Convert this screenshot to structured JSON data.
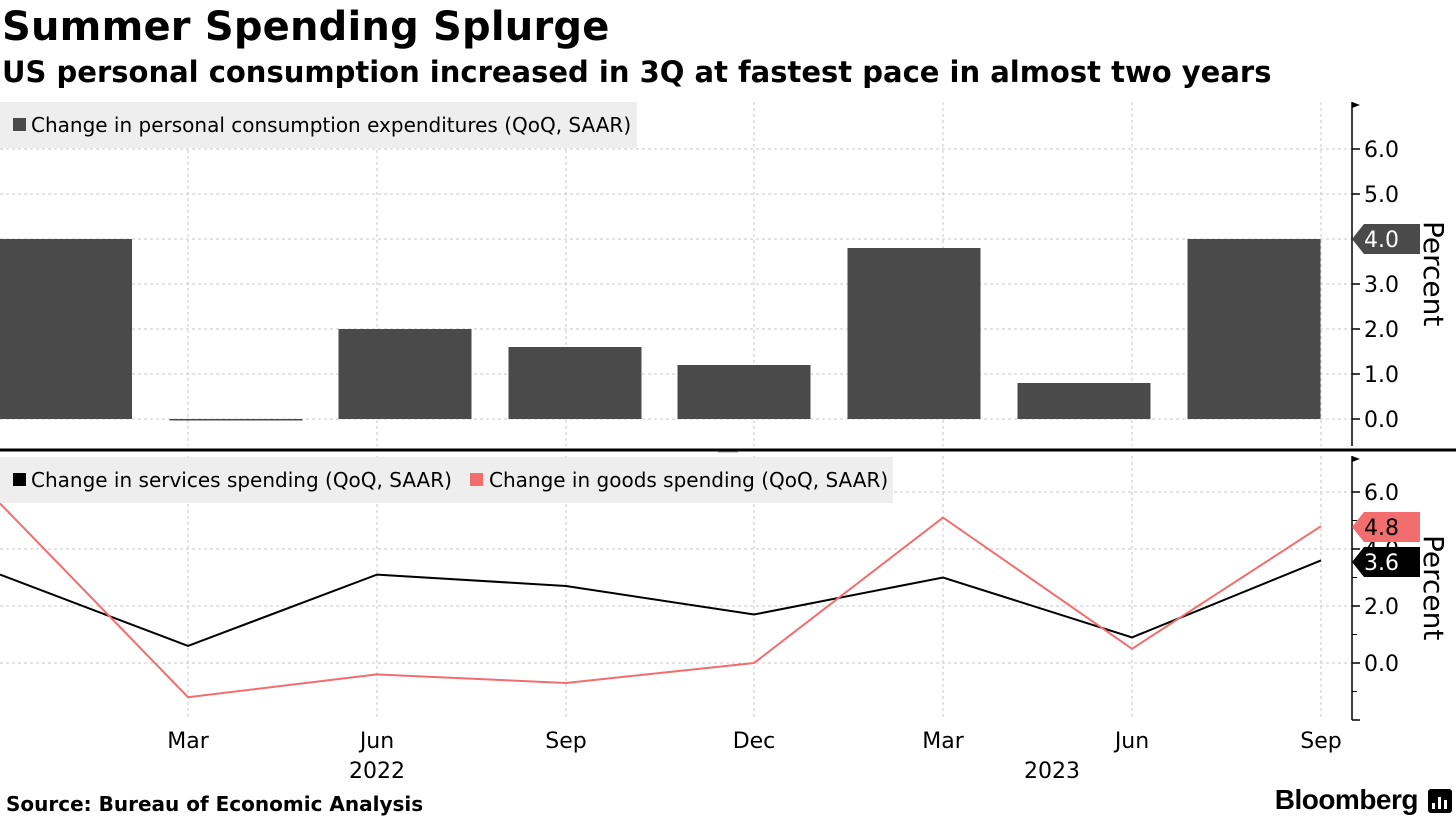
{
  "header": {
    "title": "Summer Spending Splurge",
    "subtitle": "US personal consumption increased in 3Q at fastest pace in almost two years"
  },
  "footer": {
    "source": "Source: Bureau of Economic Analysis",
    "brand": "Bloomberg"
  },
  "colors": {
    "pce": "#4a4a4a",
    "services": "#000000",
    "goods": "#f26d6d",
    "grid": "#c8c8c8",
    "legend_bg": "#eeeeee"
  },
  "chart_data": [
    {
      "type": "bar",
      "x": [
        "2021-12",
        "2022-03",
        "2022-06",
        "2022-09",
        "2022-12",
        "2023-03",
        "2023-06",
        "2023-09"
      ],
      "series": [
        {
          "name": "Change in personal consumption expenditures (QoQ, SAAR)",
          "values": [
            4.0,
            0.0,
            2.0,
            1.6,
            1.2,
            3.8,
            0.8,
            4.0
          ]
        }
      ],
      "ylabel": "Percent",
      "ylim": [
        -0.6,
        7.0
      ],
      "yticks": [
        "6.0",
        "5.0",
        "4.0",
        "3.0",
        "2.0",
        "1.0",
        "0.0"
      ],
      "last_value_label": "4.0",
      "legend": "top-left",
      "grid": true
    },
    {
      "type": "line",
      "x": [
        "2021-12",
        "2022-03",
        "2022-06",
        "2022-09",
        "2022-12",
        "2023-03",
        "2023-06",
        "2023-09"
      ],
      "series": [
        {
          "name": "Change in services spending (QoQ, SAAR)",
          "values": [
            3.1,
            0.6,
            3.1,
            2.7,
            1.7,
            3.0,
            0.9,
            3.6
          ],
          "last_label": "3.6"
        },
        {
          "name": "Change in goods spending (QoQ, SAAR)",
          "values": [
            5.6,
            -1.2,
            -0.4,
            -0.7,
            0.0,
            5.1,
            0.5,
            4.8
          ],
          "last_label": "4.8"
        }
      ],
      "ylabel": "Percent",
      "ylim": [
        -2.0,
        7.0
      ],
      "yticks": [
        "6.0",
        "4.0",
        "2.0",
        "0.0"
      ],
      "legend": "top-left",
      "grid": true
    }
  ],
  "x_axis": {
    "month_labels": [
      "Mar",
      "Jun",
      "Sep",
      "Dec",
      "Mar",
      "Jun",
      "Sep"
    ],
    "year_labels": [
      "2022",
      "2023"
    ]
  }
}
